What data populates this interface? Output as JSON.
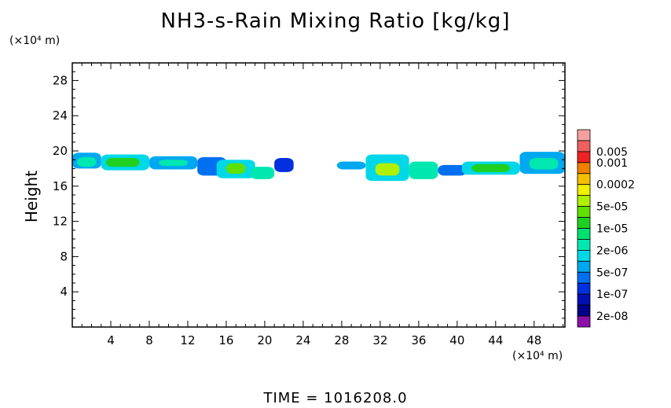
{
  "chart_data": {
    "type": "heatmap",
    "title": "NH3-s-Rain Mixing Ratio [kg/kg]",
    "ylabel": "Height",
    "x_unit_label": "(×10⁴ m)",
    "y_unit_label": "(×10⁴ m)",
    "footer": "TIME  =  1016208.0",
    "xlim": [
      0,
      51.2
    ],
    "ylim": [
      0,
      30
    ],
    "x_ticks": [
      4,
      8,
      12,
      16,
      20,
      24,
      28,
      32,
      36,
      40,
      44,
      48
    ],
    "y_ticks": [
      4,
      8,
      12,
      16,
      20,
      24,
      28
    ],
    "colorbar": {
      "levels": [
        {
          "label": "",
          "color": "#f4a0a0"
        },
        {
          "label": "0.005",
          "color": "#f06060"
        },
        {
          "label": "0.001",
          "color": "#ee2222"
        },
        {
          "label": "",
          "color": "#f08000"
        },
        {
          "label": "0.0002",
          "color": "#f4c000"
        },
        {
          "label": "",
          "color": "#f0f000"
        },
        {
          "label": "5e-05",
          "color": "#b0f000"
        },
        {
          "label": "",
          "color": "#60e000"
        },
        {
          "label": "1e-05",
          "color": "#20d020"
        },
        {
          "label": "",
          "color": "#00e070"
        },
        {
          "label": "2e-06",
          "color": "#00e8b0"
        },
        {
          "label": "",
          "color": "#00d8e8"
        },
        {
          "label": "5e-07",
          "color": "#00a8f0"
        },
        {
          "label": "",
          "color": "#0070f0"
        },
        {
          "label": "1e-07",
          "color": "#0030e0"
        },
        {
          "label": "",
          "color": "#0010b0"
        },
        {
          "label": "2e-08",
          "color": "#000088"
        },
        {
          "label": "",
          "color": "#8a10a8"
        }
      ]
    },
    "blobs": [
      {
        "x": [
          0,
          3
        ],
        "y": [
          18.0,
          19.8
        ],
        "level": 12
      },
      {
        "x": [
          0.5,
          2.5
        ],
        "y": [
          18.2,
          19.3
        ],
        "level": 10
      },
      {
        "x": [
          3,
          8
        ],
        "y": [
          17.8,
          19.6
        ],
        "level": 11
      },
      {
        "x": [
          3.5,
          7
        ],
        "y": [
          18.2,
          19.2
        ],
        "level": 8
      },
      {
        "x": [
          8,
          13
        ],
        "y": [
          17.9,
          19.4
        ],
        "level": 12
      },
      {
        "x": [
          9,
          12
        ],
        "y": [
          18.3,
          19.0
        ],
        "level": 10
      },
      {
        "x": [
          13,
          16
        ],
        "y": [
          17.2,
          19.3
        ],
        "level": 13
      },
      {
        "x": [
          15,
          19
        ],
        "y": [
          16.9,
          19.0
        ],
        "level": 11
      },
      {
        "x": [
          16,
          18
        ],
        "y": [
          17.4,
          18.6
        ],
        "level": 7
      },
      {
        "x": [
          18.5,
          21
        ],
        "y": [
          16.8,
          18.2
        ],
        "level": 10
      },
      {
        "x": [
          21,
          23
        ],
        "y": [
          17.6,
          19.2
        ],
        "level": 14
      },
      {
        "x": [
          27.5,
          30.5
        ],
        "y": [
          17.9,
          18.8
        ],
        "level": 12
      },
      {
        "x": [
          30.5,
          35
        ],
        "y": [
          16.6,
          19.6
        ],
        "level": 11
      },
      {
        "x": [
          31.5,
          34
        ],
        "y": [
          17.2,
          18.6
        ],
        "level": 6
      },
      {
        "x": [
          35,
          38
        ],
        "y": [
          16.8,
          18.8
        ],
        "level": 10
      },
      {
        "x": [
          38,
          41
        ],
        "y": [
          17.2,
          18.4
        ],
        "level": 13
      },
      {
        "x": [
          40.5,
          46.5
        ],
        "y": [
          17.3,
          18.8
        ],
        "level": 11
      },
      {
        "x": [
          41.5,
          45.5
        ],
        "y": [
          17.6,
          18.5
        ],
        "level": 8
      },
      {
        "x": [
          46.5,
          51.2
        ],
        "y": [
          17.4,
          19.9
        ],
        "level": 12
      },
      {
        "x": [
          47.5,
          50.5
        ],
        "y": [
          17.9,
          19.2
        ],
        "level": 10
      }
    ]
  }
}
